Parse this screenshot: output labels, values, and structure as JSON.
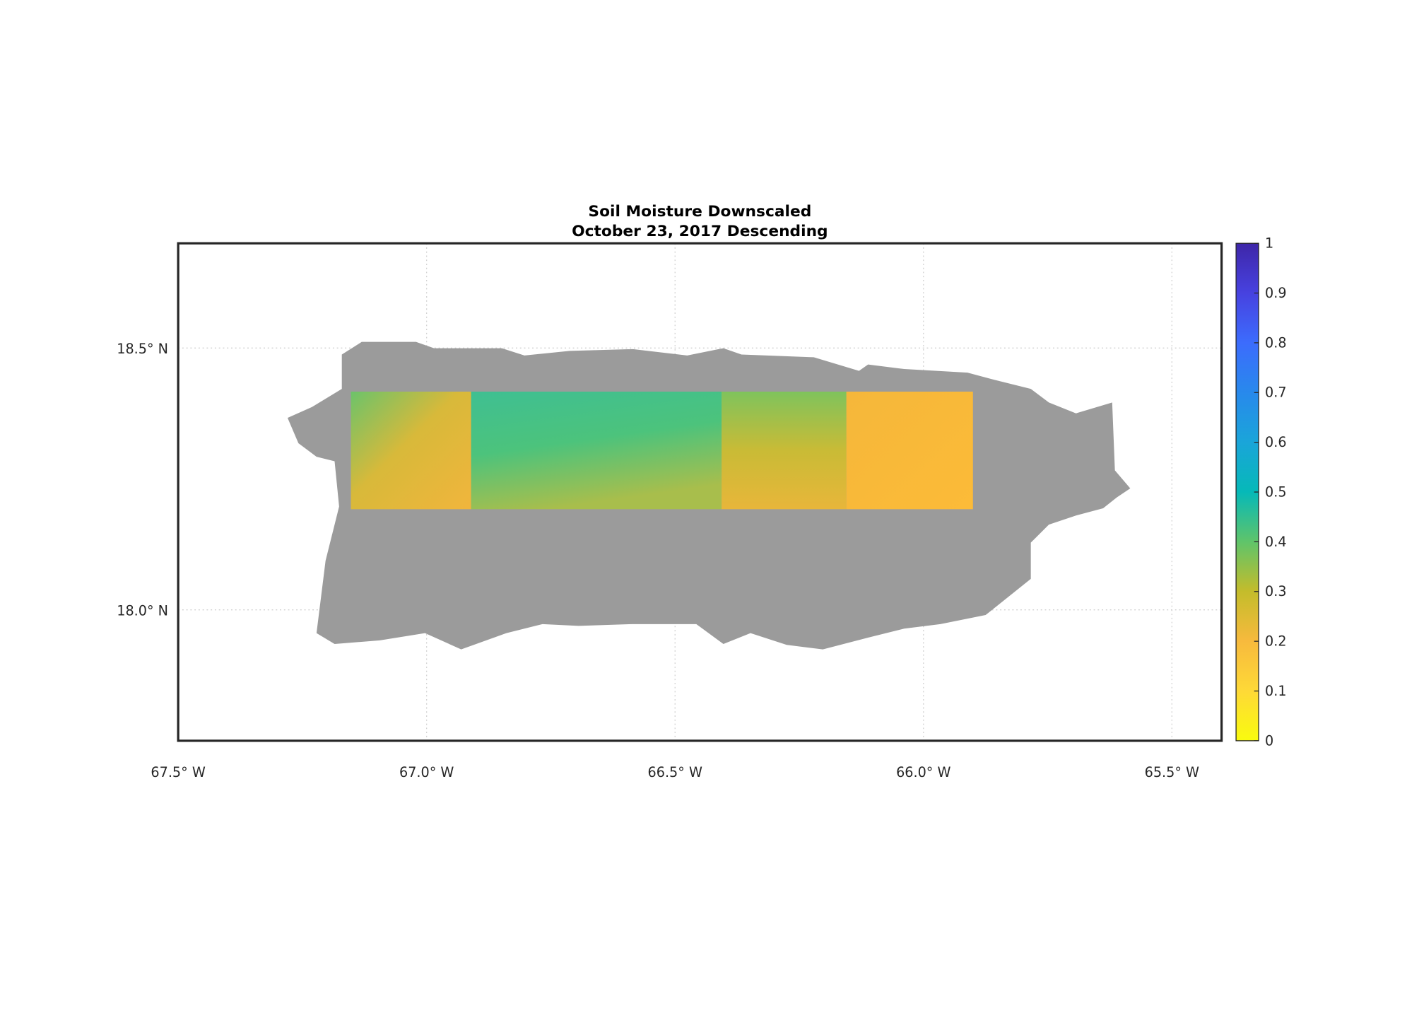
{
  "chart_data": {
    "type": "map",
    "title": [
      "Soil Moisture Downscaled",
      "October 23, 2017 Descending"
    ],
    "xlim": [
      -67.5,
      -65.4
    ],
    "xticks": [
      {
        "value": -67.5,
        "label": "67.5° W"
      },
      {
        "value": -67.0,
        "label": "67.0° W"
      },
      {
        "value": -66.5,
        "label": "66.5° W"
      },
      {
        "value": -66.0,
        "label": "66.0° W"
      },
      {
        "value": -65.5,
        "label": "65.5° W"
      }
    ],
    "ylim": [
      17.75,
      18.7
    ],
    "yticks": [
      {
        "value": 18.0,
        "label": "18.0° N"
      },
      {
        "value": 18.5,
        "label": "18.5° N"
      }
    ],
    "grid": true,
    "colorbar": {
      "lim": [
        0,
        1
      ],
      "ticks": [
        0,
        0.1,
        0.2,
        0.3,
        0.4,
        0.5,
        0.6,
        0.7,
        0.8,
        0.9,
        1
      ]
    }
  }
}
